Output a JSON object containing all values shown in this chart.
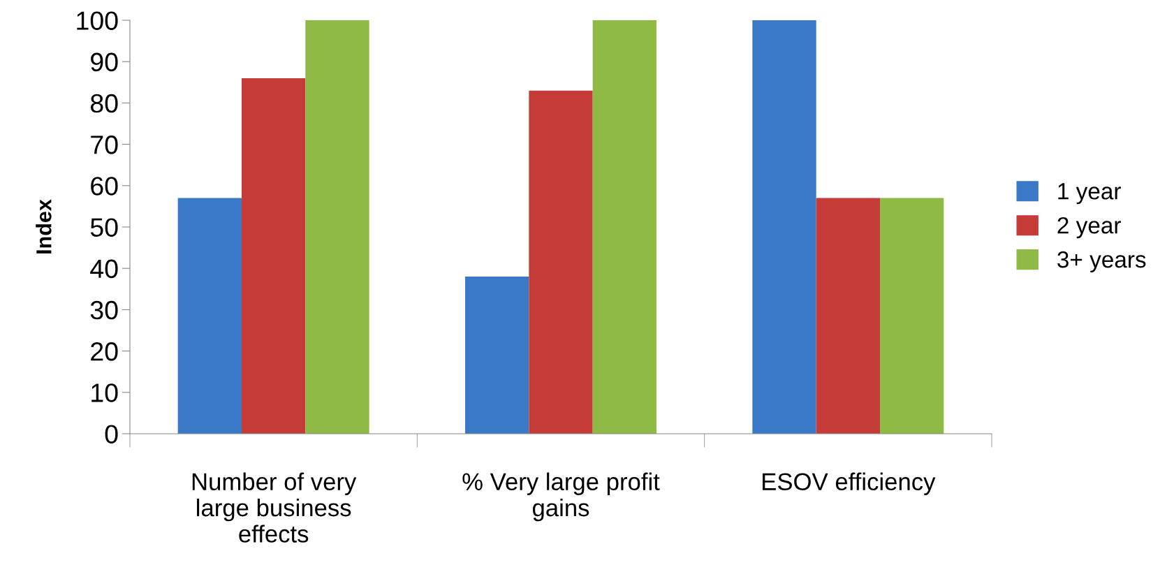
{
  "chart_data": {
    "type": "bar",
    "ylabel": "Index",
    "categories": [
      "Number of very\nlarge business\neffects",
      "% Very large profit\ngains",
      "ESOV efficiency"
    ],
    "series": [
      {
        "name": "1 year",
        "color": "#3a78c8",
        "values": [
          57,
          38,
          100
        ]
      },
      {
        "name": "2 year",
        "color": "#c53b38",
        "values": [
          86,
          83,
          57
        ]
      },
      {
        "name": "3+ years",
        "color": "#8fba45",
        "values": [
          100,
          100,
          57
        ]
      }
    ],
    "ylim": [
      0,
      100
    ],
    "yticks": [
      0,
      10,
      20,
      30,
      40,
      50,
      60,
      70,
      80,
      90,
      100
    ],
    "grid": false,
    "legend": "right"
  }
}
